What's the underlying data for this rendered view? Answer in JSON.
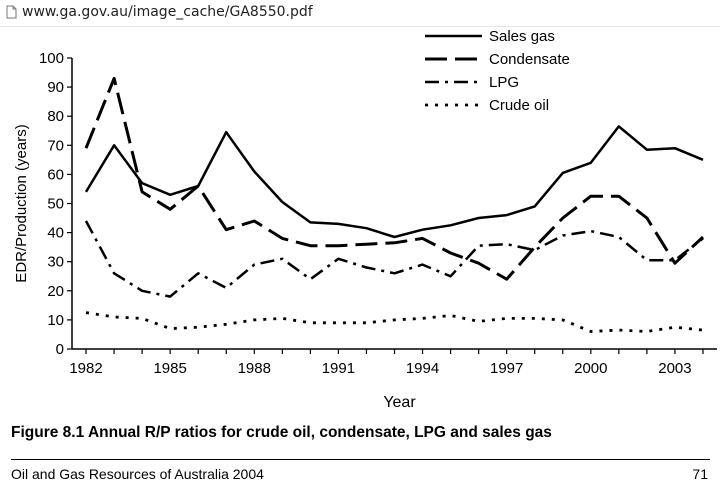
{
  "browser": {
    "url": "www.ga.gov.au/image_cache/GA8550.pdf",
    "icon": "page-icon"
  },
  "document": {
    "caption": "Figure 8.1  Annual R/P ratios for crude oil, condensate, LPG and sales gas",
    "footer_left": "Oil and Gas Resources of Australia 2004",
    "footer_right": "71"
  },
  "chart_data": {
    "type": "line",
    "title": "",
    "xlabel": "Year",
    "ylabel": "EDR/Production (years)",
    "xlim": [
      1981.5,
      2004.5
    ],
    "ylim": [
      0,
      100
    ],
    "xticks": [
      1982,
      1985,
      1988,
      1991,
      1994,
      1997,
      2000,
      2003
    ],
    "yticks": [
      0,
      10,
      20,
      30,
      40,
      50,
      60,
      70,
      80,
      90,
      100
    ],
    "grid": false,
    "legend_position": "top-right",
    "x": [
      1982,
      1983,
      1984,
      1985,
      1986,
      1987,
      1988,
      1989,
      1990,
      1991,
      1992,
      1993,
      1994,
      1995,
      1996,
      1997,
      1998,
      1999,
      2000,
      2001,
      2002,
      2003,
      2004
    ],
    "series": [
      {
        "name": "Sales gas",
        "dash": "solid",
        "values": [
          54,
          70,
          57,
          53,
          56,
          74.5,
          61,
          50.5,
          43.5,
          43,
          41.5,
          38.5,
          41,
          42.5,
          45,
          46,
          49,
          60.5,
          64,
          76.5,
          68.5,
          69,
          65
        ]
      },
      {
        "name": "Condensate",
        "dash": "long-dash",
        "values": [
          69,
          93,
          54,
          48,
          56,
          41,
          44,
          38,
          35.5,
          35.5,
          36,
          36.5,
          38,
          33,
          29.5,
          24,
          35,
          45,
          52.5,
          52.5,
          45,
          29.5,
          38.5
        ]
      },
      {
        "name": "LPG",
        "dash": "dash-dot",
        "values": [
          44,
          26,
          20,
          18,
          26,
          21,
          29,
          31,
          24,
          31,
          28,
          26,
          29,
          25,
          35.5,
          36,
          34,
          39,
          40.5,
          38.5,
          30.5,
          30.5,
          38
        ]
      },
      {
        "name": "Crude oil",
        "dash": "dotted",
        "values": [
          12.5,
          11,
          10.5,
          7,
          7.5,
          8.5,
          10,
          10.5,
          9,
          9,
          9,
          10,
          10.5,
          11.5,
          9.5,
          10.5,
          10.5,
          10,
          6,
          6.5,
          6,
          7.5,
          6.5
        ]
      }
    ]
  }
}
